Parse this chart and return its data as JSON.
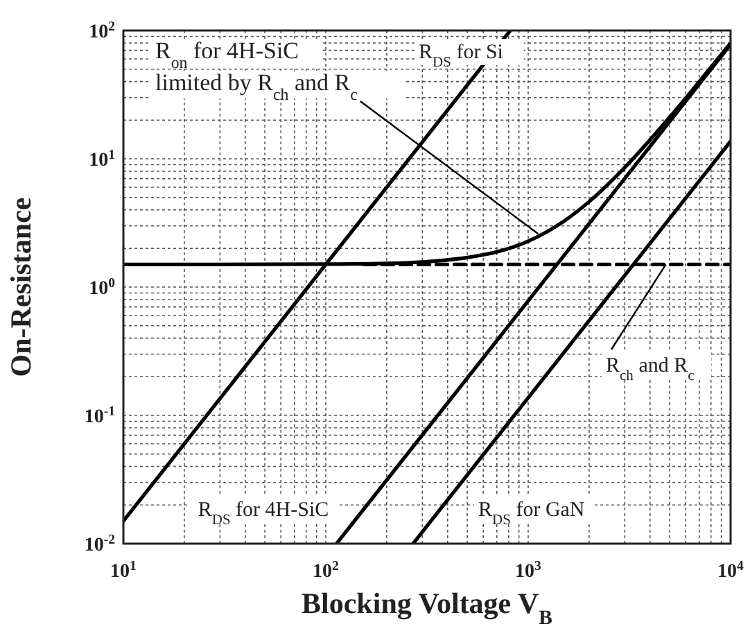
{
  "chart_data": {
    "type": "line",
    "xlabel": "Blocking Voltage V$_{B}$",
    "ylabel": "On-Resistance",
    "log": "xy",
    "grid": true,
    "annotations": [
      {
        "text": "R$_{on}$ for 4H-SiC limited by R$_{ch}$ and R$_{c}$",
        "x": 1120,
        "y": 2.6
      }
    ],
    "xlim": [
      10,
      10000
    ],
    "xticks": [
      {
        "value": 10,
        "label": "10$^{1}$"
      },
      {
        "value": 100,
        "label": "10$^{2}$"
      },
      {
        "value": 1000,
        "label": "10$^{3}$"
      },
      {
        "value": 10000,
        "label": "10$^{4}$"
      }
    ],
    "ylim": [
      0.01,
      100
    ],
    "yticks": [
      {
        "value": 0.01,
        "label": "10$^{-2}$"
      },
      {
        "value": 0.1,
        "label": "10$^{-1}$"
      },
      {
        "value": 1,
        "label": "10$^{0}$"
      },
      {
        "value": 10,
        "label": "10$^{1}$"
      },
      {
        "value": 100,
        "label": "10$^{2}$"
      }
    ],
    "series": [
      {
        "name": "R$_{DS}$ for Si",
        "color": "#000000",
        "x": [
          10,
          100,
          816
        ],
        "values": [
          0.015,
          1.5,
          100
        ]
      },
      {
        "name": "R$_{DS}$ for 4H-SiC",
        "color": "#000000",
        "x": [
          113,
          1000,
          10000
        ],
        "values": [
          0.01,
          0.78,
          78
        ]
      },
      {
        "name": "R$_{DS}$ for GaN",
        "color": "#000000",
        "x": [
          270,
          1000,
          10000
        ],
        "values": [
          0.01,
          0.137,
          13.7
        ]
      },
      {
        "color": "#000000",
        "x": [
          10,
          100,
          200,
          300,
          500,
          700,
          1000,
          1500,
          2000,
          3000,
          5000,
          7000,
          10000
        ],
        "values": [
          1.5,
          1.51,
          1.53,
          1.57,
          1.7,
          1.88,
          2.28,
          3.26,
          4.63,
          8.55,
          21.1,
          39.9,
          79.8
        ]
      },
      {
        "name": "R$_{ch}$ and R$_{c}$",
        "color": "#000000",
        "line_style": "dashed",
        "x": [
          155,
          10000
        ],
        "values": [
          1.5,
          1.5
        ]
      }
    ]
  }
}
